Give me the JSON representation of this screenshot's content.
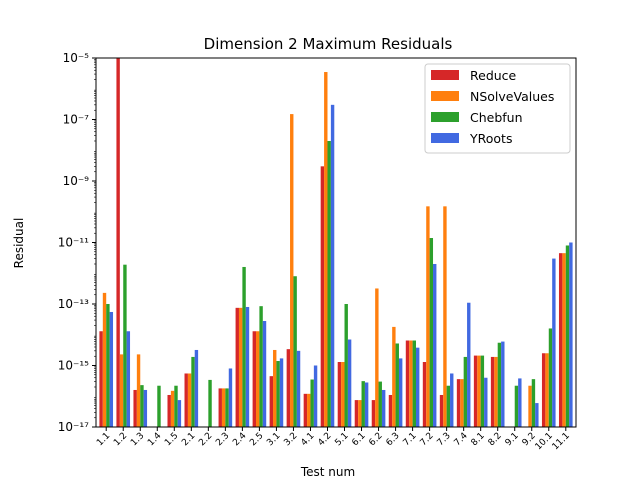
{
  "chart_data": {
    "type": "bar",
    "title": "Dimension 2 Maximum Residuals",
    "xlabel": "Test num",
    "ylabel": "Residual",
    "yscale": "log",
    "ylim": [
      1e-17,
      1e-05
    ],
    "y_tick_labels": [
      "10⁻¹⁷",
      "10⁻¹⁵",
      "10⁻¹³",
      "10⁻¹¹",
      "10⁻⁹",
      "10⁻⁷",
      "10⁻⁵"
    ],
    "y_tick_values": [
      1e-17,
      1e-15,
      1e-13,
      1e-11,
      1e-09,
      1e-07,
      1e-05
    ],
    "grid": false,
    "legend_position": "top-right",
    "categories": [
      "1.1",
      "1.2",
      "1.3",
      "1.4",
      "1.5",
      "2.1",
      "2.2",
      "2.3",
      "2.4",
      "2.5",
      "3.1",
      "3.2",
      "4.1",
      "4.2",
      "5.1",
      "6.1",
      "6.2",
      "6.3",
      "7.1",
      "7.2",
      "7.3",
      "7.4",
      "8.1",
      "8.2",
      "9.1",
      "9.2",
      "10.1",
      "11.1"
    ],
    "series": [
      {
        "name": "Reduce",
        "color": "#d62728",
        "values": [
          1.3e-14,
          1e-05,
          1.6e-16,
          null,
          1.1e-16,
          5.5e-16,
          null,
          1.8e-16,
          7.5e-14,
          1.3e-14,
          4.5e-16,
          3.4e-15,
          1.2e-16,
          3e-09,
          1.3e-15,
          7.5e-17,
          7.5e-17,
          1.1e-16,
          6.5e-15,
          1.3e-15,
          1.1e-16,
          3.6e-16,
          2.1e-15,
          1.9e-15,
          null,
          null,
          2.5e-15,
          4.5e-12
        ]
      },
      {
        "name": "NSolveValues",
        "color": "#ff7f0e",
        "values": [
          2.3e-13,
          2.3e-15,
          2.3e-15,
          null,
          1.5e-16,
          5.5e-16,
          null,
          1.8e-16,
          7.5e-14,
          1.3e-14,
          3.2e-15,
          1.5e-07,
          1.2e-16,
          3.5e-06,
          1.3e-15,
          7.5e-17,
          3.2e-13,
          1.8e-14,
          6.5e-15,
          1.5e-10,
          1.5e-10,
          3.6e-16,
          2.1e-15,
          1.9e-15,
          null,
          2.2e-16,
          2.5e-15,
          4.5e-12
        ]
      },
      {
        "name": "Chebfun",
        "color": "#2ca02c",
        "values": [
          1e-13,
          1.9e-12,
          2.3e-16,
          2.2e-16,
          2.2e-16,
          1.9e-15,
          3.4e-16,
          1.8e-16,
          1.6e-12,
          8.5e-14,
          1.4e-15,
          8e-13,
          3.5e-16,
          2e-08,
          1e-13,
          3.1e-16,
          3e-16,
          5.2e-15,
          6.5e-15,
          1.4e-11,
          2.2e-16,
          1.9e-15,
          2.1e-15,
          5.5e-15,
          2.2e-16,
          3.6e-16,
          1.6e-14,
          8e-12
        ]
      },
      {
        "name": "YRoots",
        "color": "#4169e1",
        "values": [
          5.5e-14,
          1.3e-14,
          1.6e-16,
          null,
          7.5e-17,
          3.2e-15,
          null,
          8e-16,
          8e-14,
          2.8e-14,
          1.7e-15,
          3e-15,
          1e-15,
          3e-07,
          7e-15,
          2.8e-16,
          1.6e-16,
          1.7e-15,
          3.8e-15,
          2e-12,
          5.5e-16,
          1.1e-13,
          4e-16,
          6e-15,
          3.8e-16,
          6e-17,
          3e-12,
          1e-11
        ]
      }
    ]
  }
}
